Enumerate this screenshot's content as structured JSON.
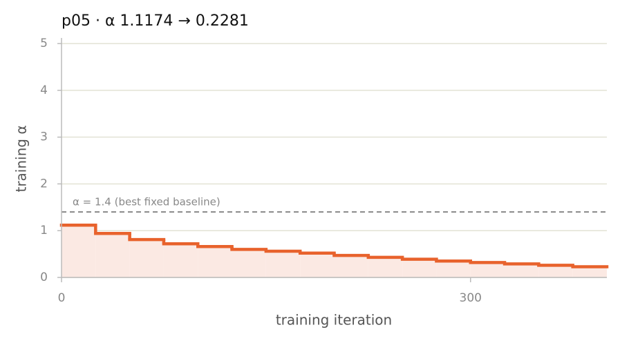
{
  "chart_data": {
    "type": "step",
    "title": "p05   ·   α 1.1174 → 0.2281",
    "x_label": "training iteration",
    "y_label": "training α",
    "x": [
      0,
      25,
      50,
      75,
      100,
      125,
      150,
      175,
      200,
      225,
      250,
      275,
      300,
      325,
      350,
      375
    ],
    "values": [
      1.1174,
      0.94,
      0.81,
      0.72,
      0.66,
      0.6,
      0.56,
      0.52,
      0.47,
      0.43,
      0.39,
      0.35,
      0.32,
      0.29,
      0.26,
      0.2281
    ],
    "color": "#e8622c",
    "fill": "#fbe9e3",
    "baseline": {
      "value": 1.4,
      "label": "α = 1.4 (best fixed baseline)"
    },
    "xlim": [
      0,
      400
    ],
    "xticks": [
      0,
      300
    ],
    "ylim": [
      0,
      5.12
    ],
    "yticks": [
      0,
      1,
      2,
      3,
      4,
      5
    ],
    "grid": true
  }
}
